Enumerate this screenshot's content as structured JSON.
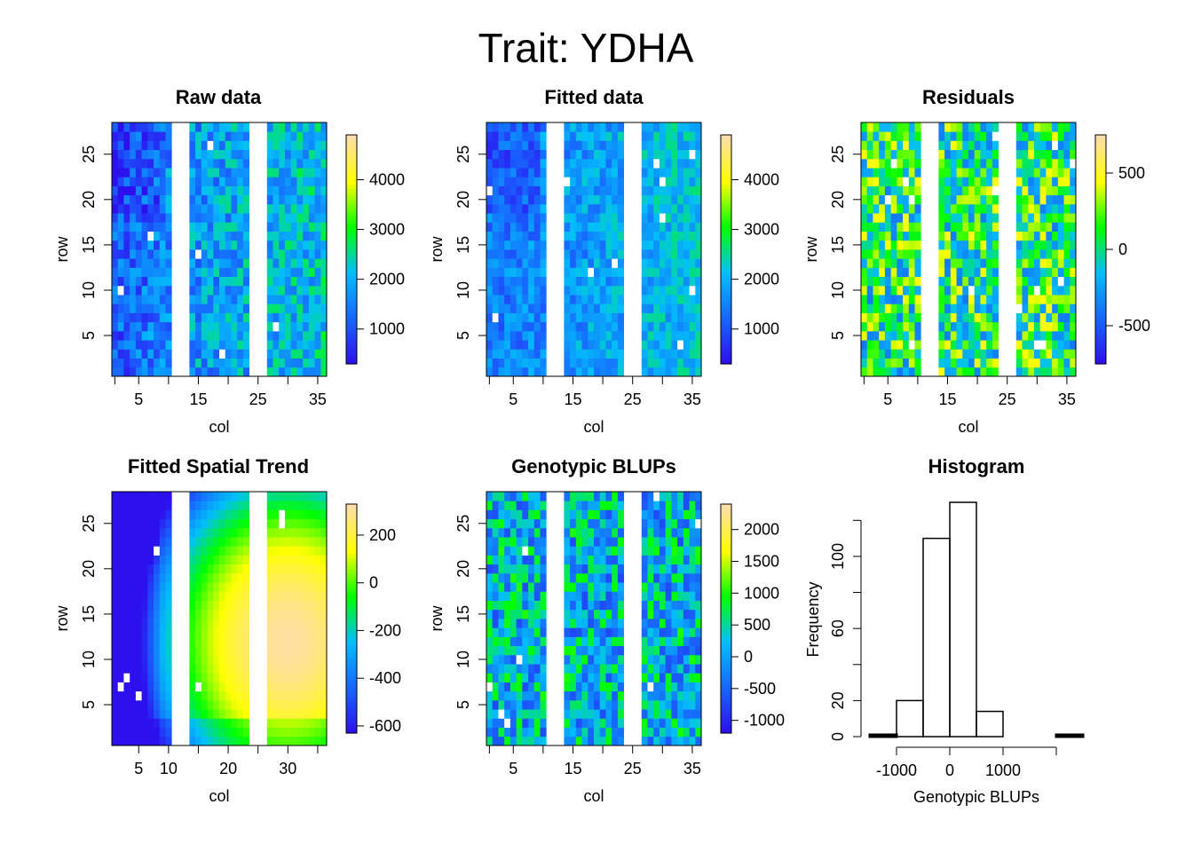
{
  "title": "Trait: YDHA",
  "colors": {
    "scale": [
      "#2d10ee",
      "#1768ff",
      "#03bff9",
      "#00ff00",
      "#ffff00",
      "#ffdeaa"
    ]
  },
  "chart_data": [
    {
      "type": "heatmap",
      "title": "Raw data",
      "xlabel": "col",
      "ylabel": "row",
      "xlim": [
        0.5,
        36.5
      ],
      "ylim": [
        0.5,
        28.5
      ],
      "xticks": [
        5,
        15,
        25,
        35
      ],
      "yticks": [
        5,
        10,
        15,
        20,
        25
      ],
      "empty_cols": [
        11,
        12,
        13,
        24,
        25,
        26
      ],
      "legend": {
        "min": 300,
        "max": 4900,
        "ticks": [
          1000,
          2000,
          3000,
          4000
        ]
      },
      "pattern": "raw"
    },
    {
      "type": "heatmap",
      "title": "Fitted data",
      "xlabel": "col",
      "ylabel": "row",
      "xlim": [
        0.5,
        36.5
      ],
      "ylim": [
        0.5,
        28.5
      ],
      "xticks": [
        5,
        15,
        25,
        35
      ],
      "yticks": [
        5,
        10,
        15,
        20,
        25
      ],
      "empty_cols": [
        11,
        12,
        13,
        24,
        25,
        26
      ],
      "legend": {
        "min": 300,
        "max": 4900,
        "ticks": [
          1000,
          2000,
          3000,
          4000
        ]
      },
      "pattern": "fitted"
    },
    {
      "type": "heatmap",
      "title": "Residuals",
      "xlabel": "col",
      "ylabel": "row",
      "xlim": [
        0.5,
        36.5
      ],
      "ylim": [
        0.5,
        28.5
      ],
      "xticks": [
        5,
        15,
        25,
        35
      ],
      "yticks": [
        5,
        10,
        15,
        20,
        25
      ],
      "empty_cols": [
        11,
        12,
        13,
        24,
        25,
        26
      ],
      "legend": {
        "min": -750,
        "max": 750,
        "ticks": [
          -500,
          0,
          500
        ]
      },
      "pattern": "residual"
    },
    {
      "type": "heatmap",
      "title": "Fitted Spatial Trend",
      "xlabel": "col",
      "ylabel": "row",
      "xlim": [
        0.5,
        36.5
      ],
      "ylim": [
        0.5,
        28.5
      ],
      "xticks": [
        5,
        10,
        20,
        30
      ],
      "yticks": [
        5,
        10,
        15,
        20,
        25
      ],
      "empty_cols": [
        11,
        12,
        13,
        24,
        25,
        26
      ],
      "legend": {
        "min": -630,
        "max": 330,
        "ticks": [
          -600,
          -400,
          -200,
          0,
          200
        ]
      },
      "pattern": "trend"
    },
    {
      "type": "heatmap",
      "title": "Genotypic BLUPs",
      "xlabel": "col",
      "ylabel": "row",
      "xlim": [
        0.5,
        36.5
      ],
      "ylim": [
        0.5,
        28.5
      ],
      "xticks": [
        5,
        15,
        25,
        35
      ],
      "yticks": [
        5,
        10,
        15,
        20,
        25
      ],
      "empty_cols": [
        11,
        12,
        13,
        24,
        25,
        26
      ],
      "legend": {
        "min": -1200,
        "max": 2400,
        "ticks": [
          -1000,
          -500,
          0,
          500,
          1000,
          1500,
          2000
        ]
      },
      "pattern": "blup"
    },
    {
      "type": "bar",
      "title": "Histogram",
      "xlabel": "Genotypic BLUPs",
      "ylabel": "Frequency",
      "bins": [
        [
          -1500,
          -1000
        ],
        [
          -1000,
          -500
        ],
        [
          -500,
          0
        ],
        [
          0,
          500
        ],
        [
          500,
          1000
        ],
        [
          1000,
          1500
        ],
        [
          1500,
          2000
        ],
        [
          2000,
          2500
        ]
      ],
      "values": [
        1,
        20,
        110,
        130,
        14,
        0,
        0,
        1
      ],
      "xticks": [
        -1000,
        0,
        1000
      ],
      "yticks": [
        0,
        20,
        60,
        100
      ],
      "xlim": [
        -1500,
        2500
      ],
      "ylim": [
        0,
        130
      ]
    }
  ]
}
